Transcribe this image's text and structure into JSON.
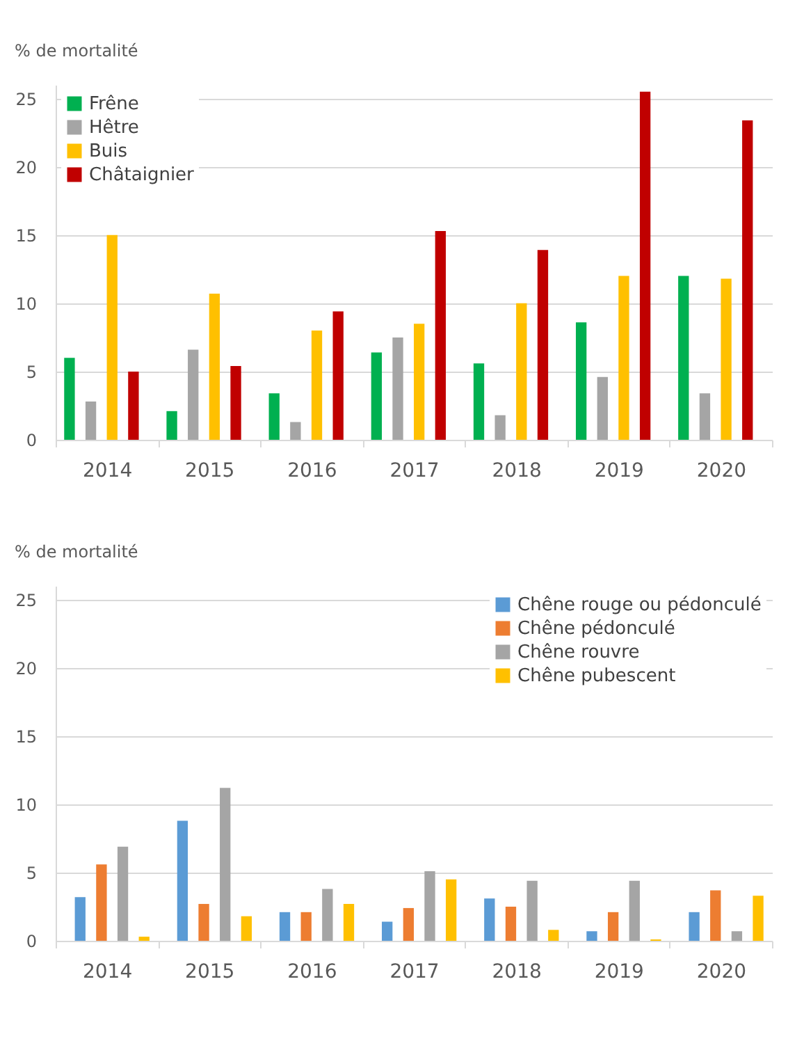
{
  "chart_data": [
    {
      "type": "bar",
      "ylabel": "% de mortalité",
      "categories": [
        "2014",
        "2015",
        "2016",
        "2017",
        "2018",
        "2019",
        "2020"
      ],
      "ylim": [
        0,
        26
      ],
      "yticks": [
        0,
        5,
        10,
        15,
        20,
        25
      ],
      "grid": "y",
      "legend": "top left",
      "series": [
        {
          "name": "Frêne",
          "color": "#00b050",
          "values": [
            6.0,
            2.1,
            3.4,
            6.4,
            5.6,
            8.6,
            12.0
          ]
        },
        {
          "name": "Hêtre",
          "color": "#a5a5a5",
          "values": [
            2.8,
            6.6,
            1.3,
            7.5,
            1.8,
            4.6,
            3.4
          ]
        },
        {
          "name": "Buis",
          "color": "#ffc000",
          "values": [
            15.0,
            10.7,
            8.0,
            8.5,
            10.0,
            12.0,
            11.8
          ]
        },
        {
          "name": "Châtaignier",
          "color": "#c00000",
          "values": [
            5.0,
            5.4,
            9.4,
            15.3,
            13.9,
            25.5,
            23.4
          ]
        }
      ]
    },
    {
      "type": "bar",
      "ylabel": "% de mortalité",
      "categories": [
        "2014",
        "2015",
        "2016",
        "2017",
        "2018",
        "2019",
        "2020"
      ],
      "ylim": [
        0,
        26
      ],
      "yticks": [
        0,
        5,
        10,
        15,
        20,
        25
      ],
      "grid": "y",
      "legend": "top right",
      "series": [
        {
          "name": "Chêne rouge ou pédonculé",
          "color": "#5b9bd5",
          "values": [
            3.2,
            8.8,
            2.1,
            1.4,
            3.1,
            0.7,
            2.1
          ]
        },
        {
          "name": "Chêne pédonculé",
          "color": "#ed7d31",
          "values": [
            5.6,
            2.7,
            2.1,
            2.4,
            2.5,
            2.1,
            3.7
          ]
        },
        {
          "name": "Chêne rouvre",
          "color": "#a5a5a5",
          "values": [
            6.9,
            11.2,
            3.8,
            5.1,
            4.4,
            4.4,
            0.7
          ]
        },
        {
          "name": "Chêne pubescent",
          "color": "#ffc000",
          "values": [
            0.3,
            1.8,
            2.7,
            4.5,
            0.8,
            0.1,
            3.3
          ]
        }
      ]
    }
  ]
}
